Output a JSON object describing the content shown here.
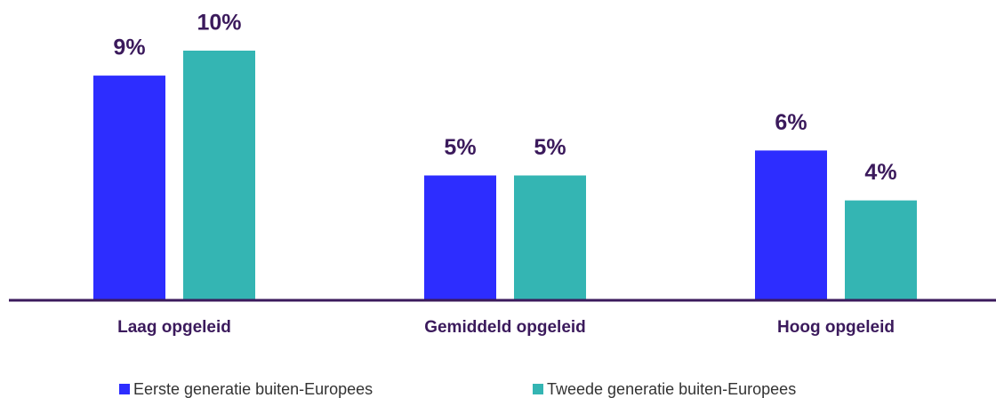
{
  "chart_data": {
    "type": "bar",
    "categories": [
      "Laag opgeleid",
      "Gemiddeld opgeleid",
      "Hoog opgeleid"
    ],
    "series": [
      {
        "name": "Eerste generatie buiten-Europees",
        "color": "#2d2dff",
        "values": [
          9,
          5,
          6
        ],
        "value_labels": [
          "9%",
          "5%",
          "6%"
        ]
      },
      {
        "name": "Tweede generatie buiten-Europees",
        "color": "#34b5b3",
        "values": [
          10,
          5,
          4
        ],
        "value_labels": [
          "10%",
          "5%",
          "4%"
        ]
      }
    ],
    "ylim": [
      0,
      10
    ]
  }
}
